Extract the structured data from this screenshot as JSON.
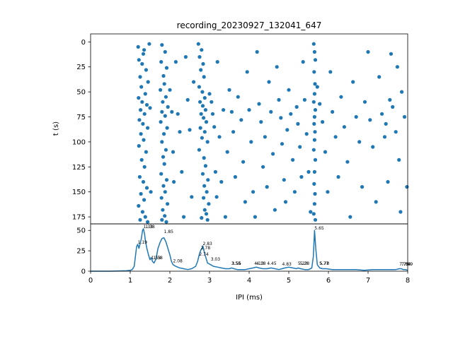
{
  "chart_data": [
    {
      "type": "scatter",
      "title": "recording_20230927_132041_647",
      "xlabel": "",
      "ylabel": "t (s)",
      "xlim": [
        0,
        8
      ],
      "ylim": [
        182,
        -8
      ],
      "y_inverted": true,
      "grid": false,
      "yticks": [
        0,
        25,
        50,
        75,
        100,
        125,
        150,
        175
      ],
      "marker_color": "#1f77b4",
      "points": [
        [
          1.2,
          5
        ],
        [
          1.35,
          8
        ],
        [
          1.22,
          18
        ],
        [
          1.3,
          22
        ],
        [
          1.4,
          28
        ],
        [
          1.25,
          35
        ],
        [
          1.33,
          12
        ],
        [
          1.45,
          40
        ],
        [
          1.28,
          45
        ],
        [
          1.38,
          52
        ],
        [
          1.21,
          56
        ],
        [
          1.3,
          60
        ],
        [
          1.42,
          63
        ],
        [
          1.26,
          68
        ],
        [
          1.36,
          72
        ],
        [
          1.23,
          78
        ],
        [
          1.32,
          82
        ],
        [
          1.44,
          86
        ],
        [
          1.27,
          92
        ],
        [
          1.34,
          98
        ],
        [
          1.22,
          104
        ],
        [
          1.4,
          110
        ],
        [
          1.29,
          118
        ],
        [
          1.36,
          125
        ],
        [
          1.24,
          135
        ],
        [
          1.33,
          140
        ],
        [
          1.42,
          146
        ],
        [
          1.27,
          152
        ],
        [
          1.35,
          158
        ],
        [
          1.21,
          164
        ],
        [
          1.31,
          170
        ],
        [
          1.38,
          175
        ],
        [
          1.25,
          178
        ],
        [
          1.44,
          180
        ],
        [
          1.48,
          2
        ],
        [
          1.5,
          66
        ],
        [
          1.52,
          150
        ],
        [
          1.8,
          3
        ],
        [
          1.88,
          10
        ],
        [
          1.78,
          20
        ],
        [
          1.92,
          26
        ],
        [
          1.84,
          34
        ],
        [
          1.86,
          42
        ],
        [
          1.76,
          48
        ],
        [
          1.9,
          55
        ],
        [
          1.82,
          60
        ],
        [
          1.95,
          65
        ],
        [
          1.8,
          70
        ],
        [
          1.88,
          74
        ],
        [
          1.77,
          80
        ],
        [
          1.93,
          86
        ],
        [
          1.85,
          92
        ],
        [
          1.8,
          100
        ],
        [
          1.9,
          108
        ],
        [
          1.83,
          115
        ],
        [
          1.86,
          122
        ],
        [
          1.78,
          132
        ],
        [
          1.92,
          138
        ],
        [
          1.84,
          144
        ],
        [
          1.88,
          150
        ],
        [
          1.79,
          156
        ],
        [
          1.94,
          162
        ],
        [
          1.82,
          168
        ],
        [
          1.87,
          174
        ],
        [
          1.8,
          178
        ],
        [
          1.91,
          180
        ],
        [
          2.0,
          48
        ],
        [
          2.05,
          70
        ],
        [
          2.08,
          110
        ],
        [
          2.1,
          140
        ],
        [
          2.15,
          20
        ],
        [
          2.2,
          72
        ],
        [
          2.25,
          90
        ],
        [
          2.3,
          130
        ],
        [
          2.35,
          175
        ],
        [
          2.4,
          15
        ],
        [
          2.45,
          58
        ],
        [
          2.5,
          88
        ],
        [
          2.55,
          155
        ],
        [
          2.6,
          40
        ],
        [
          2.72,
          2
        ],
        [
          2.8,
          8
        ],
        [
          2.75,
          15
        ],
        [
          2.84,
          22
        ],
        [
          2.78,
          28
        ],
        [
          2.86,
          35
        ],
        [
          2.74,
          45
        ],
        [
          2.82,
          50
        ],
        [
          2.88,
          56
        ],
        [
          2.76,
          60
        ],
        [
          2.83,
          64
        ],
        [
          2.9,
          68
        ],
        [
          2.79,
          72
        ],
        [
          2.85,
          76
        ],
        [
          2.92,
          80
        ],
        [
          2.77,
          86
        ],
        [
          2.88,
          90
        ],
        [
          2.81,
          96
        ],
        [
          2.95,
          100
        ],
        [
          2.74,
          108
        ],
        [
          2.86,
          116
        ],
        [
          2.9,
          124
        ],
        [
          2.83,
          132
        ],
        [
          2.96,
          138
        ],
        [
          2.87,
          144
        ],
        [
          2.93,
          150
        ],
        [
          2.85,
          156
        ],
        [
          2.98,
          162
        ],
        [
          2.88,
          168
        ],
        [
          2.92,
          172
        ],
        [
          2.8,
          176
        ],
        [
          2.95,
          178
        ],
        [
          3.0,
          52
        ],
        [
          3.05,
          60
        ],
        [
          3.08,
          72
        ],
        [
          3.12,
          85
        ],
        [
          3.15,
          130
        ],
        [
          3.18,
          155
        ],
        [
          3.2,
          20
        ],
        [
          3.25,
          95
        ],
        [
          3.3,
          140
        ],
        [
          3.35,
          68
        ],
        [
          3.4,
          175
        ],
        [
          3.45,
          110
        ],
        [
          3.5,
          48
        ],
        [
          3.56,
          70
        ],
        [
          3.6,
          90
        ],
        [
          3.65,
          135
        ],
        [
          3.72,
          55
        ],
        [
          3.8,
          78
        ],
        [
          3.85,
          120
        ],
        [
          3.9,
          160
        ],
        [
          3.95,
          30
        ],
        [
          4.0,
          68
        ],
        [
          4.05,
          100
        ],
        [
          4.1,
          150
        ],
        [
          4.15,
          175
        ],
        [
          4.2,
          10
        ],
        [
          4.25,
          62
        ],
        [
          4.3,
          80
        ],
        [
          4.35,
          125
        ],
        [
          4.4,
          95
        ],
        [
          4.45,
          145
        ],
        [
          4.5,
          40
        ],
        [
          4.55,
          70
        ],
        [
          4.6,
          112
        ],
        [
          4.65,
          168
        ],
        [
          4.7,
          25
        ],
        [
          4.75,
          58
        ],
        [
          4.8,
          76
        ],
        [
          4.83,
          102
        ],
        [
          4.88,
          138
        ],
        [
          4.92,
          160
        ],
        [
          4.96,
          88
        ],
        [
          5.0,
          48
        ],
        [
          5.05,
          72
        ],
        [
          5.1,
          118
        ],
        [
          5.15,
          150
        ],
        [
          5.2,
          65
        ],
        [
          5.23,
          82
        ],
        [
          5.28,
          105
        ],
        [
          5.32,
          135
        ],
        [
          5.36,
          20
        ],
        [
          5.4,
          58
        ],
        [
          5.45,
          92
        ],
        [
          5.5,
          130
        ],
        [
          5.55,
          170
        ],
        [
          5.63,
          2
        ],
        [
          5.65,
          10
        ],
        [
          5.67,
          18
        ],
        [
          5.64,
          30
        ],
        [
          5.66,
          42
        ],
        [
          5.65,
          52
        ],
        [
          5.63,
          60
        ],
        [
          5.67,
          68
        ],
        [
          5.65,
          75
        ],
        [
          5.64,
          82
        ],
        [
          5.66,
          90
        ],
        [
          5.65,
          98
        ],
        [
          5.63,
          108
        ],
        [
          5.67,
          118
        ],
        [
          5.65,
          130
        ],
        [
          5.64,
          142
        ],
        [
          5.66,
          152
        ],
        [
          5.65,
          162
        ],
        [
          5.63,
          172
        ],
        [
          5.67,
          178
        ],
        [
          5.72,
          45
        ],
        [
          5.78,
          62
        ],
        [
          5.85,
          80
        ],
        [
          5.92,
          110
        ],
        [
          5.98,
          150
        ],
        [
          6.05,
          30
        ],
        [
          6.1,
          70
        ],
        [
          6.18,
          95
        ],
        [
          6.25,
          135
        ],
        [
          6.32,
          55
        ],
        [
          6.4,
          85
        ],
        [
          6.48,
          120
        ],
        [
          6.55,
          175
        ],
        [
          6.62,
          40
        ],
        [
          6.7,
          75
        ],
        [
          6.78,
          100
        ],
        [
          6.85,
          145
        ],
        [
          6.92,
          60
        ],
        [
          7.0,
          10
        ],
        [
          7.05,
          78
        ],
        [
          7.12,
          105
        ],
        [
          7.2,
          160
        ],
        [
          7.28,
          35
        ],
        [
          7.35,
          72
        ],
        [
          7.42,
          95
        ],
        [
          7.5,
          140
        ],
        [
          7.58,
          12
        ],
        [
          7.62,
          65
        ],
        [
          7.7,
          90
        ],
        [
          7.78,
          118
        ],
        [
          7.85,
          50
        ],
        [
          7.92,
          75
        ],
        [
          7.98,
          145
        ],
        [
          7.82,
          170
        ],
        [
          7.74,
          25
        ],
        [
          7.55,
          58
        ],
        [
          7.45,
          82
        ]
      ]
    },
    {
      "type": "line",
      "title": "",
      "xlabel": "IPI (ms)",
      "ylabel": "",
      "xlim": [
        0,
        8
      ],
      "ylim": [
        0,
        58
      ],
      "xticks": [
        0,
        1,
        2,
        3,
        4,
        5,
        6,
        7,
        8
      ],
      "yticks": [
        0,
        25,
        50
      ],
      "line_color": "#1f77b4",
      "series": [
        {
          "x": [
            0,
            0.5,
            0.9,
            1.0,
            1.05,
            1.1,
            1.13,
            1.16,
            1.19,
            1.22,
            1.25,
            1.28,
            1.31,
            1.33,
            1.36,
            1.38,
            1.42,
            1.46,
            1.5,
            1.53,
            1.56,
            1.6,
            1.65,
            1.7,
            1.75,
            1.8,
            1.85,
            1.9,
            1.95,
            2.0,
            2.04,
            2.08,
            2.15,
            2.25,
            2.35,
            2.45,
            2.55,
            2.65,
            2.7,
            2.74,
            2.78,
            2.81,
            2.83,
            2.86,
            2.9,
            2.95,
            3.03,
            3.1,
            3.2,
            3.3,
            3.4,
            3.5,
            3.56,
            3.62,
            3.7,
            3.8,
            3.9,
            4.0,
            4.1,
            4.18,
            4.25,
            4.35,
            4.45,
            4.55,
            4.65,
            4.75,
            4.83,
            4.9,
            5.0,
            5.1,
            5.2,
            5.23,
            5.3,
            5.4,
            5.5,
            5.58,
            5.62,
            5.65,
            5.68,
            5.72,
            5.78,
            5.85,
            5.95,
            6.1,
            6.3,
            6.5,
            6.7,
            6.9,
            7.1,
            7.3,
            7.5,
            7.7,
            7.79,
            7.84,
            7.89,
            7.95,
            8.0
          ],
          "values": [
            0,
            0,
            0.5,
            1,
            2,
            6,
            18,
            30,
            33,
            28,
            34,
            40,
            50,
            52,
            46,
            38,
            28,
            20,
            14,
            17,
            12,
            10,
            15,
            28,
            35,
            40,
            41,
            36,
            28,
            20,
            12,
            8,
            6,
            4,
            3,
            2,
            3,
            6,
            12,
            20,
            26,
            28,
            31,
            25,
            18,
            10,
            8,
            6,
            5,
            4,
            3,
            3,
            4,
            3,
            2,
            2,
            2,
            3,
            4,
            5,
            4,
            3,
            3,
            4,
            3,
            2,
            3,
            4,
            5,
            4,
            3,
            4,
            3,
            2,
            2,
            4,
            18,
            50,
            28,
            8,
            4,
            3,
            3,
            2,
            2,
            2,
            2,
            1,
            2,
            2,
            2,
            2,
            3,
            3,
            2,
            2,
            1
          ]
        }
      ],
      "peak_labels": [
        {
          "x": 1.19,
          "y": 33,
          "text": "1.19"
        },
        {
          "x": 1.33,
          "y": 52,
          "text": "1.33"
        },
        {
          "x": 1.38,
          "y": 52,
          "text": "1.38"
        },
        {
          "x": 1.53,
          "y": 14,
          "text": "1.53"
        },
        {
          "x": 1.58,
          "y": 14,
          "text": "1.58"
        },
        {
          "x": 1.85,
          "y": 46,
          "text": "1.85"
        },
        {
          "x": 2.08,
          "y": 10,
          "text": "2.08"
        },
        {
          "x": 2.74,
          "y": 18,
          "text": "2.74"
        },
        {
          "x": 2.78,
          "y": 26,
          "text": "2.78"
        },
        {
          "x": 2.83,
          "y": 31,
          "text": "2.83"
        },
        {
          "x": 3.03,
          "y": 12,
          "text": "3.03"
        },
        {
          "x": 3.55,
          "y": 7,
          "text": "3.55"
        },
        {
          "x": 3.56,
          "y": 7,
          "text": "3.56"
        },
        {
          "x": 4.13,
          "y": 7,
          "text": "4.13"
        },
        {
          "x": 4.18,
          "y": 7,
          "text": "4.18"
        },
        {
          "x": 4.45,
          "y": 7,
          "text": "4.45"
        },
        {
          "x": 4.83,
          "y": 6,
          "text": "4.83"
        },
        {
          "x": 5.23,
          "y": 7,
          "text": "5.23"
        },
        {
          "x": 5.28,
          "y": 7,
          "text": "5.28"
        },
        {
          "x": 5.65,
          "y": 50,
          "text": "5.65"
        },
        {
          "x": 5.77,
          "y": 7,
          "text": "5.77"
        },
        {
          "x": 5.78,
          "y": 7,
          "text": "5.78"
        },
        {
          "x": 7.79,
          "y": 6,
          "text": "7.79"
        },
        {
          "x": 7.84,
          "y": 6,
          "text": "7.84"
        },
        {
          "x": 7.89,
          "y": 6,
          "text": "7.89"
        }
      ]
    }
  ]
}
